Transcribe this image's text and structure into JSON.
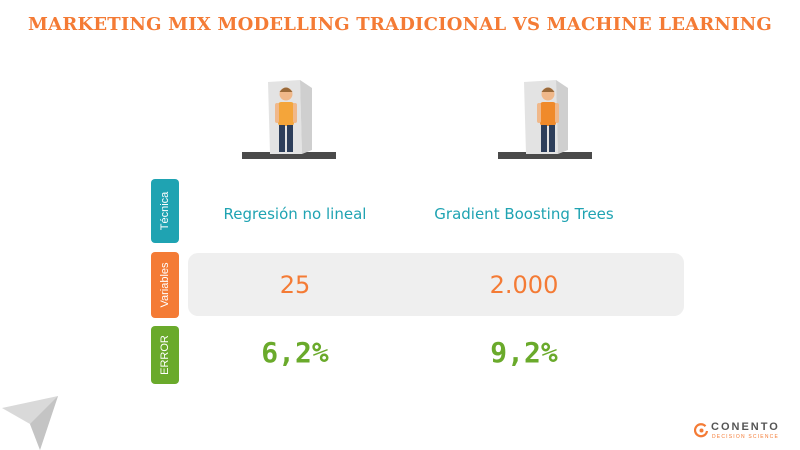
{
  "title": "MARKETING MIX MODELLING TRADICIONAL VS MACHINE LEARNING",
  "rows": {
    "tecnica": {
      "label": "Técnica",
      "left": "Regresión no lineal",
      "right": "Gradient Boosting Trees"
    },
    "variables": {
      "label": "Variables",
      "left": "25",
      "right": "2.000"
    },
    "error": {
      "label": "ERROR",
      "left": "6,2%",
      "right": "9,2%"
    }
  },
  "logo": {
    "name": "CONENTO",
    "tagline": "DECISION SCIENCE"
  },
  "icons": [
    "person-in-doorway-icon",
    "person-in-doorway-icon",
    "arrow-deco-icon",
    "conento-logo-icon"
  ],
  "colors": {
    "accent_orange": "#f47b35",
    "teal": "#1fa3b2",
    "green": "#6aaa2b",
    "band": "#efefef"
  }
}
